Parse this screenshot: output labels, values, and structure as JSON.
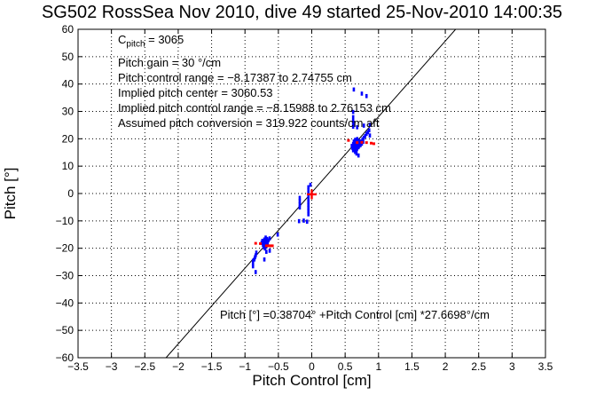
{
  "window": {
    "title": "SG502 RossSea Nov 2010, dive 49 started 25-Nov-2010 14:00:35"
  },
  "chart_data": {
    "type": "scatter",
    "title": "SG502 RossSea Nov 2010, dive 49 started 25-Nov-2010 14:00:35",
    "xlabel": "Pitch Control [cm]",
    "ylabel": "Pitch [°]",
    "xlim": [
      -3.5,
      3.5
    ],
    "ylim": [
      -60,
      60
    ],
    "grid": "dotted",
    "legend": "none",
    "x_ticks": [
      "−3.5",
      "−3",
      "−2.5",
      "−2",
      "−1.5",
      "−1",
      "−0.5",
      "0",
      "0.5",
      "1",
      "1.5",
      "2",
      "2.5",
      "3",
      "3.5"
    ],
    "y_ticks": [
      "60",
      "50",
      "40",
      "30",
      "20",
      "10",
      "0",
      "−10",
      "−20",
      "−30",
      "−40",
      "−50",
      "−60"
    ],
    "colors": {
      "blue_marker": "#0000ff",
      "red_marker": "#ff0000",
      "line": "#000000",
      "grid": "#000000"
    },
    "annotations": {
      "c_pitch": {
        "base": "C",
        "sub": "pitch",
        "rest": " = 3065"
      },
      "lines": [
        "Pitch gain = 30 °/cm",
        "Pitch control range = −8.17387 to 2.74755 cm",
        "Implied pitch center = 3060.53",
        "Implied pitch control range = −8.15988 to 2.76153 cm",
        "Assumed pitch conversion = 319.922 counts/cm aft"
      ],
      "equation": "Pitch [°] =0.38704° +Pitch Control [cm] *27.6698°/cm"
    },
    "fit_line": {
      "intercept_deg": 0.38704,
      "slope_deg_per_cm": 27.6698
    },
    "series": [
      {
        "name": "blue-points",
        "color": "#0000ff",
        "marker": "vdash",
        "points": [
          [
            0.6,
            17.4
          ],
          [
            0.61,
            16.6
          ],
          [
            0.62,
            18.1
          ],
          [
            0.62,
            15.8
          ],
          [
            0.63,
            17.0
          ],
          [
            0.63,
            19.0
          ],
          [
            0.64,
            16.2
          ],
          [
            0.64,
            18.4
          ],
          [
            0.65,
            17.6
          ],
          [
            0.65,
            15.2
          ],
          [
            0.65,
            19.6
          ],
          [
            0.66,
            16.8
          ],
          [
            0.66,
            18.9
          ],
          [
            0.67,
            17.9
          ],
          [
            0.67,
            16.0
          ],
          [
            0.67,
            14.6
          ],
          [
            0.68,
            18.3
          ],
          [
            0.68,
            16.4
          ],
          [
            0.68,
            19.9
          ],
          [
            0.69,
            17.1
          ],
          [
            0.69,
            18.7
          ],
          [
            0.7,
            16.9
          ],
          [
            0.7,
            18.0
          ],
          [
            0.7,
            13.9
          ],
          [
            0.71,
            17.4
          ],
          [
            0.71,
            19.2
          ],
          [
            0.72,
            18.6
          ],
          [
            0.73,
            17.7
          ],
          [
            0.74,
            19.0
          ],
          [
            0.75,
            18.2
          ],
          [
            0.76,
            19.8
          ],
          [
            0.77,
            18.9
          ],
          [
            0.78,
            20.4
          ],
          [
            0.8,
            21.0
          ],
          [
            0.82,
            21.8
          ],
          [
            0.84,
            22.4
          ],
          [
            0.86,
            23.1
          ],
          [
            0.87,
            21.2
          ],
          [
            0.62,
            24.4
          ],
          [
            0.68,
            24.2
          ],
          [
            0.78,
            24.8
          ],
          [
            0.87,
            25.1
          ],
          [
            0.62,
            25.5
          ],
          [
            0.62,
            26.5
          ],
          [
            0.62,
            27.9
          ],
          [
            0.62,
            29.8
          ],
          [
            0.63,
            38.0
          ],
          [
            0.75,
            36.5
          ],
          [
            0.82,
            35.6
          ],
          [
            -0.02,
            3.2
          ],
          [
            -0.05,
            2.3
          ],
          [
            -0.05,
            1.2
          ],
          [
            -0.05,
            0.2
          ],
          [
            -0.05,
            -0.9
          ],
          [
            -0.05,
            -2.0
          ],
          [
            -0.05,
            -3.1
          ],
          [
            -0.05,
            -4.2
          ],
          [
            -0.05,
            -5.3
          ],
          [
            -0.05,
            -6.4
          ],
          [
            -0.05,
            -7.6
          ],
          [
            -0.18,
            -1.6
          ],
          [
            -0.18,
            -2.8
          ],
          [
            -0.18,
            -4.0
          ],
          [
            -0.18,
            -5.1
          ],
          [
            -0.12,
            -9.9
          ],
          [
            -0.07,
            -10.3
          ],
          [
            -0.19,
            -10.1
          ],
          [
            -0.51,
            -15.0
          ],
          [
            -0.63,
            -16.4
          ],
          [
            -0.65,
            -17.1
          ],
          [
            -0.66,
            -17.9
          ],
          [
            -0.67,
            -16.6
          ],
          [
            -0.67,
            -18.6
          ],
          [
            -0.68,
            -17.4
          ],
          [
            -0.68,
            -19.3
          ],
          [
            -0.69,
            -18.1
          ],
          [
            -0.69,
            -16.1
          ],
          [
            -0.7,
            -18.9
          ],
          [
            -0.7,
            -17.0
          ],
          [
            -0.7,
            -20.1
          ],
          [
            -0.71,
            -18.4
          ],
          [
            -0.71,
            -16.8
          ],
          [
            -0.72,
            -19.6
          ],
          [
            -0.72,
            -17.7
          ],
          [
            -0.73,
            -18.8
          ],
          [
            -0.74,
            -17.3
          ],
          [
            -0.75,
            -18.0
          ],
          [
            -0.63,
            -20.9
          ],
          [
            -0.68,
            -21.3
          ],
          [
            -0.83,
            -21.6
          ],
          [
            -0.84,
            -22.6
          ],
          [
            -0.85,
            -23.3
          ],
          [
            -0.86,
            -24.1
          ],
          [
            -0.88,
            -24.6
          ],
          [
            -0.88,
            -25.6
          ],
          [
            -0.88,
            -26.6
          ],
          [
            -0.71,
            -24.1
          ],
          [
            -0.84,
            -28.7
          ]
        ]
      },
      {
        "name": "red-points",
        "color": "#ff0000",
        "marker": "dot",
        "points": [
          [
            0.55,
            19.4
          ],
          [
            0.68,
            18.6
          ],
          [
            0.75,
            18.7
          ],
          [
            0.82,
            18.6
          ],
          [
            0.89,
            18.4
          ],
          [
            0.93,
            18.2
          ],
          [
            -0.84,
            -18.2
          ],
          [
            -0.77,
            -18.3
          ],
          [
            -0.68,
            -19.1
          ],
          [
            -0.65,
            -19.1
          ],
          [
            -0.62,
            -19.1
          ],
          [
            -0.59,
            -19.1
          ]
        ]
      },
      {
        "name": "red-plus",
        "color": "#ff0000",
        "marker": "plus",
        "points": [
          [
            0.0,
            -0.3
          ]
        ]
      }
    ]
  }
}
